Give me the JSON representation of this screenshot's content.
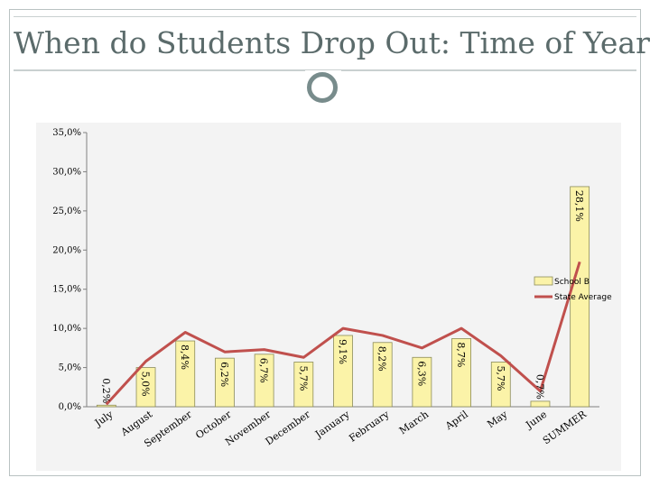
{
  "slide": {
    "title": "When do Students Drop Out:  Time of Year"
  },
  "colors": {
    "bar_fill": "#fbf3a8",
    "bar_stroke": "#8c8c5a",
    "line": "#c0504d",
    "title": "#5b6b6b",
    "accent_circle": "#788c8c"
  },
  "chart_data": {
    "type": "bar",
    "title": "",
    "xlabel": "",
    "ylabel": "",
    "ylim": [
      0,
      35
    ],
    "y_ticks": [
      "0,0%",
      "5,0%",
      "10,0%",
      "15,0%",
      "20,0%",
      "25,0%",
      "30,0%",
      "35,0%"
    ],
    "categories": [
      "July",
      "August",
      "September",
      "October",
      "November",
      "December",
      "January",
      "February",
      "March",
      "April",
      "May",
      "June",
      "SUMMER"
    ],
    "series": [
      {
        "name": "School B",
        "kind": "bar",
        "values": [
          0.2,
          5.0,
          8.4,
          6.2,
          6.7,
          5.7,
          9.1,
          8.2,
          6.3,
          8.7,
          5.7,
          0.7,
          28.1
        ],
        "labels": [
          "0,2%",
          "5,0%",
          "8,4%",
          "6,2%",
          "6,7%",
          "5,7%",
          "9,1%",
          "8,2%",
          "6,3%",
          "8,7%",
          "5,7%",
          "0,7%",
          "28,1%"
        ]
      },
      {
        "name": "State Average",
        "kind": "line",
        "values": [
          0.3,
          5.8,
          9.5,
          7.0,
          7.3,
          6.3,
          10.0,
          9.1,
          7.5,
          10.0,
          6.5,
          2.0,
          18.5
        ]
      }
    ],
    "grid": false,
    "legend_position": "right"
  }
}
